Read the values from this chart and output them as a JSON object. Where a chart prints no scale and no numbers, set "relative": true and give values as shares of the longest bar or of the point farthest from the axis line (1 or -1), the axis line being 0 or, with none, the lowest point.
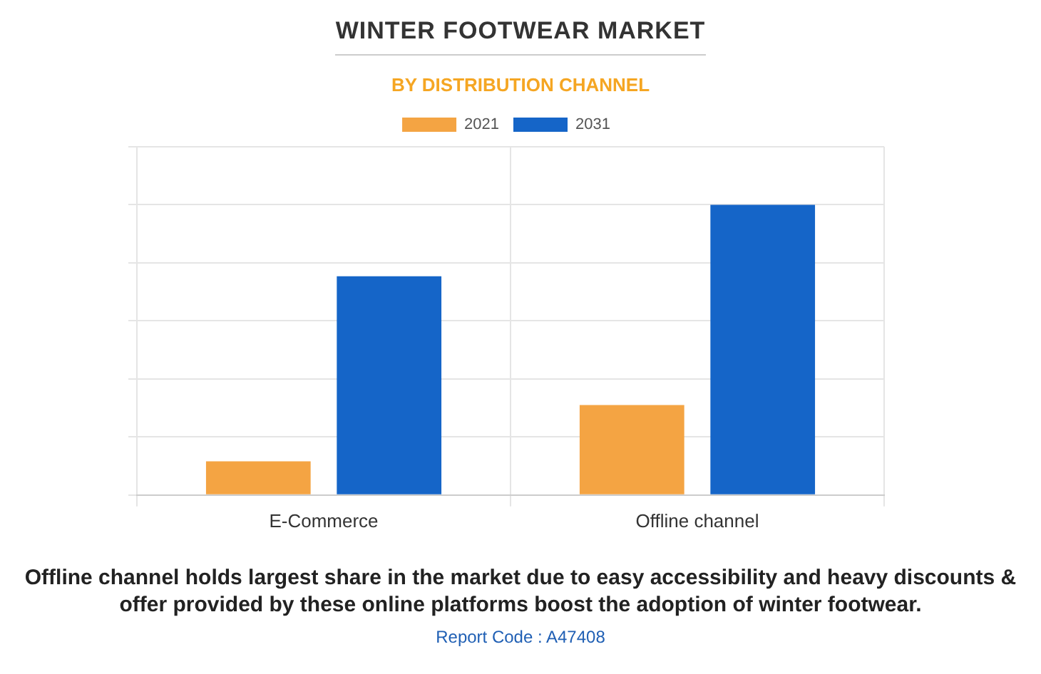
{
  "chart_data": {
    "type": "bar",
    "title": "WINTER FOOTWEAR MARKET",
    "subtitle": "BY DISTRIBUTION CHANNEL",
    "categories": [
      "E-Commerce",
      "Offline channel"
    ],
    "series": [
      {
        "name": "2021",
        "color": "#f4a443",
        "values": [
          0.116,
          0.31
        ]
      },
      {
        "name": "2031",
        "color": "#1565c8",
        "values": [
          0.754,
          1
        ]
      }
    ],
    "relative": true,
    "grid": true,
    "legend": "top",
    "annotations": [
      "Offline channel holds largest share in the market due to easy accessibility and heavy discounts & offer provided by these online platforms boost the adoption of winter footwear.",
      "Report Code : A47408"
    ]
  }
}
